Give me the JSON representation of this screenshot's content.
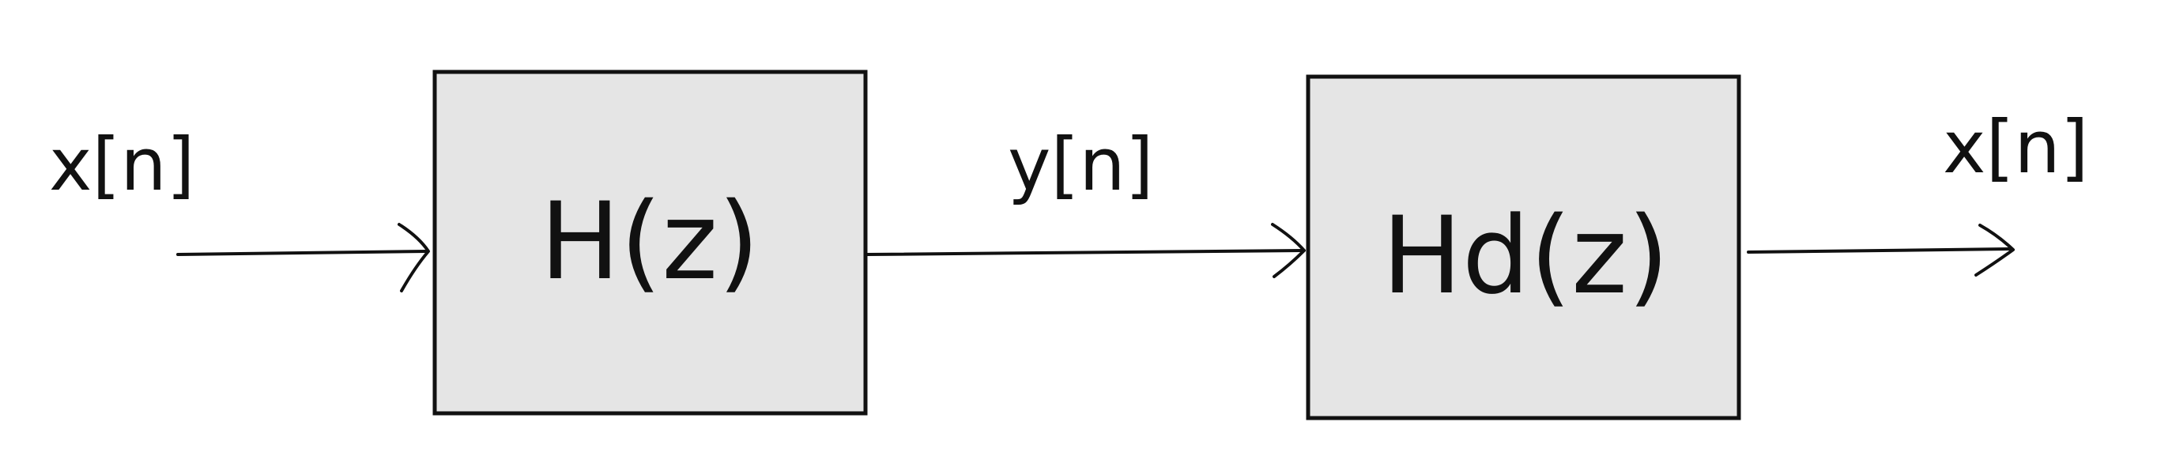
{
  "diagram": {
    "input_label": "x[n]",
    "middle_label": "y[n]",
    "output_label": "x[n]",
    "block1_label": "H(z)",
    "block2_label": "Hd(z)",
    "colors": {
      "block_fill": "#e5e5e5",
      "stroke": "#111111",
      "background": "#ffffff"
    }
  }
}
